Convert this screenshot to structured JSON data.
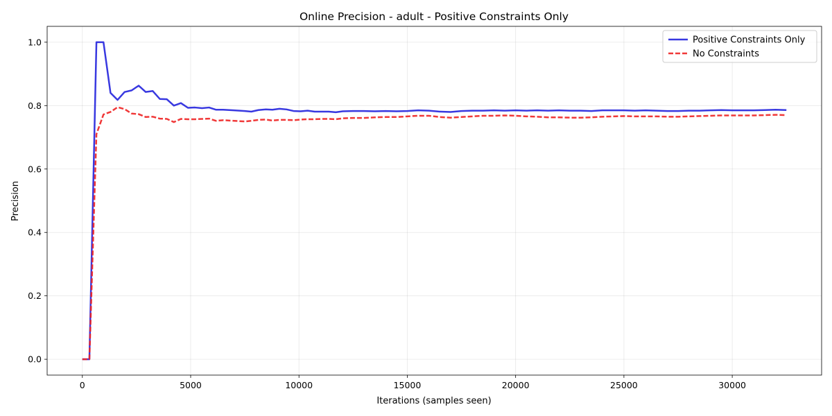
{
  "chart_data": {
    "type": "line",
    "title": "Online Precision - adult - Positive Constraints Only",
    "xlabel": "Iterations (samples seen)",
    "ylabel": "Precision",
    "xlim": [
      -1625,
      34125
    ],
    "ylim": [
      -0.05,
      1.05
    ],
    "xticks": [
      0,
      5000,
      10000,
      15000,
      20000,
      25000,
      30000
    ],
    "xtick_labels": [
      "0",
      "5000",
      "10000",
      "15000",
      "20000",
      "25000",
      "30000"
    ],
    "yticks": [
      0.0,
      0.2,
      0.4,
      0.6,
      0.8,
      1.0
    ],
    "ytick_labels": [
      "0.0",
      "0.2",
      "0.4",
      "0.6",
      "0.8",
      "1.0"
    ],
    "grid": true,
    "legend_position": "top-right",
    "series": [
      {
        "name": "Positive Constraints Only",
        "color": "#2222dd",
        "style": "solid",
        "x": [
          0,
          325,
          650,
          975,
          1300,
          1625,
          1950,
          2275,
          2600,
          2925,
          3250,
          3575,
          3900,
          4225,
          4550,
          4875,
          5200,
          5525,
          5850,
          6175,
          6500,
          7000,
          7500,
          7800,
          8125,
          8450,
          8775,
          9100,
          9425,
          9750,
          10075,
          10400,
          10725,
          11050,
          11375,
          11700,
          12025,
          12500,
          13000,
          13500,
          14000,
          14500,
          15000,
          15500,
          16000,
          16500,
          17000,
          17500,
          18000,
          18500,
          19000,
          19500,
          20000,
          20500,
          21000,
          21500,
          22000,
          22500,
          23000,
          23500,
          24000,
          24500,
          25000,
          25500,
          26000,
          26500,
          27000,
          27500,
          28000,
          28500,
          29000,
          29500,
          30000,
          30500,
          31000,
          31500,
          32000,
          32500
        ],
        "y": [
          0.0,
          0.0,
          1.0,
          1.0,
          0.84,
          0.818,
          0.843,
          0.848,
          0.863,
          0.843,
          0.846,
          0.821,
          0.82,
          0.8,
          0.808,
          0.793,
          0.794,
          0.792,
          0.794,
          0.787,
          0.787,
          0.785,
          0.783,
          0.781,
          0.786,
          0.788,
          0.787,
          0.79,
          0.788,
          0.783,
          0.782,
          0.784,
          0.781,
          0.781,
          0.781,
          0.779,
          0.782,
          0.783,
          0.783,
          0.782,
          0.783,
          0.782,
          0.783,
          0.785,
          0.784,
          0.781,
          0.78,
          0.783,
          0.784,
          0.784,
          0.785,
          0.784,
          0.785,
          0.784,
          0.785,
          0.784,
          0.785,
          0.784,
          0.784,
          0.783,
          0.785,
          0.785,
          0.785,
          0.784,
          0.785,
          0.784,
          0.783,
          0.783,
          0.784,
          0.784,
          0.785,
          0.786,
          0.785,
          0.785,
          0.785,
          0.786,
          0.787,
          0.786
        ]
      },
      {
        "name": "No Constraints",
        "color": "#ee2222",
        "style": "dashed",
        "x": [
          0,
          325,
          650,
          975,
          1300,
          1625,
          1950,
          2275,
          2600,
          2925,
          3250,
          3575,
          3900,
          4225,
          4550,
          4875,
          5200,
          5525,
          5850,
          6175,
          6500,
          7000,
          7500,
          7800,
          8125,
          8450,
          8775,
          9100,
          9425,
          9750,
          10075,
          10400,
          10725,
          11050,
          11375,
          11700,
          12025,
          12500,
          13000,
          13500,
          14000,
          14500,
          15000,
          15500,
          16000,
          16500,
          17000,
          17500,
          18000,
          18500,
          19000,
          19500,
          20000,
          20500,
          21000,
          21500,
          22000,
          22500,
          23000,
          23500,
          24000,
          24500,
          25000,
          25500,
          26000,
          26500,
          27000,
          27500,
          28000,
          28500,
          29000,
          29500,
          30000,
          30500,
          31000,
          31500,
          32000,
          32500
        ],
        "y": [
          0.0,
          0.0,
          0.71,
          0.772,
          0.78,
          0.795,
          0.789,
          0.775,
          0.773,
          0.764,
          0.765,
          0.759,
          0.758,
          0.748,
          0.758,
          0.757,
          0.757,
          0.758,
          0.759,
          0.752,
          0.754,
          0.752,
          0.75,
          0.752,
          0.755,
          0.756,
          0.753,
          0.755,
          0.755,
          0.754,
          0.756,
          0.757,
          0.757,
          0.758,
          0.758,
          0.757,
          0.76,
          0.761,
          0.761,
          0.763,
          0.764,
          0.764,
          0.766,
          0.768,
          0.768,
          0.764,
          0.762,
          0.764,
          0.766,
          0.768,
          0.768,
          0.769,
          0.768,
          0.766,
          0.765,
          0.763,
          0.763,
          0.762,
          0.762,
          0.763,
          0.765,
          0.766,
          0.767,
          0.766,
          0.766,
          0.766,
          0.765,
          0.765,
          0.766,
          0.767,
          0.768,
          0.769,
          0.769,
          0.769,
          0.769,
          0.77,
          0.771,
          0.77
        ]
      }
    ]
  }
}
